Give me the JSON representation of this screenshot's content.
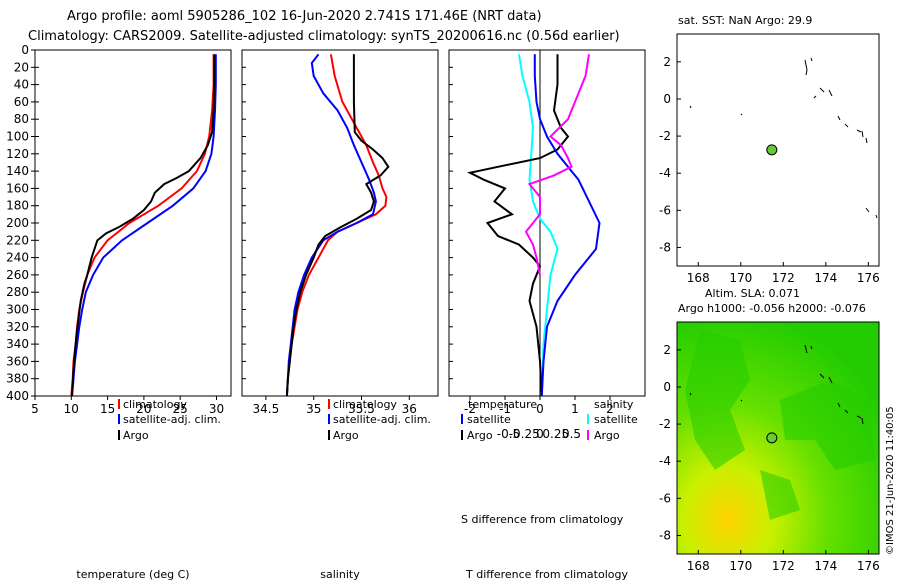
{
  "title": {
    "line1": "Argo profile: aoml 5905286_102 16-Jun-2020 2.741S 171.46E (NRT data)",
    "line2": "Climatology: CARS2009. Satellite-adjusted climatology: synTS_20200616.nc (0.56d earlier)"
  },
  "colors": {
    "clim": "#ff0000",
    "sat": "#0000ff",
    "argo": "#000000",
    "temp_diff": "#0000ff",
    "sal_diff": "#ff00ff",
    "sat_t": "#00ffff",
    "marker": "#66cc33"
  },
  "depth_axis": {
    "ticks": [
      "0",
      "20",
      "40",
      "60",
      "80",
      "100",
      "120",
      "140",
      "160",
      "180",
      "200",
      "220",
      "240",
      "260",
      "280",
      "300",
      "320",
      "340",
      "360",
      "380",
      "400"
    ]
  },
  "chart_data": [
    {
      "type": "line",
      "id": "temperature",
      "xlabel": "temperature (deg C)",
      "xlim": [
        5,
        32
      ],
      "ylim": [
        0,
        400
      ],
      "ylabel": "depth",
      "xticks": [
        "5",
        "10",
        "15",
        "20",
        "25",
        "30"
      ],
      "legend": {
        "clim": "climatology",
        "sat": "satellite-adj. clim.",
        "argo": "Argo"
      },
      "series": [
        {
          "name": "climatology",
          "color": "#ff0000",
          "points": [
            [
              29.6,
              5
            ],
            [
              29.6,
              40
            ],
            [
              29.4,
              70
            ],
            [
              29.0,
              100
            ],
            [
              28.4,
              120
            ],
            [
              27.3,
              140
            ],
            [
              25.2,
              160
            ],
            [
              22.0,
              180
            ],
            [
              18.0,
              200
            ],
            [
              15.0,
              220
            ],
            [
              13.2,
              240
            ],
            [
              12.2,
              260
            ],
            [
              11.6,
              280
            ],
            [
              11.1,
              300
            ],
            [
              10.8,
              320
            ],
            [
              10.6,
              340
            ],
            [
              10.3,
              360
            ],
            [
              10.2,
              380
            ],
            [
              10.0,
              400
            ]
          ]
        },
        {
          "name": "satellite-adj. clim.",
          "color": "#0000ff",
          "points": [
            [
              29.9,
              5
            ],
            [
              29.9,
              40
            ],
            [
              29.8,
              70
            ],
            [
              29.6,
              100
            ],
            [
              29.3,
              120
            ],
            [
              28.5,
              140
            ],
            [
              26.8,
              160
            ],
            [
              24.0,
              180
            ],
            [
              20.5,
              200
            ],
            [
              17.0,
              220
            ],
            [
              14.4,
              240
            ],
            [
              13.0,
              260
            ],
            [
              12.0,
              280
            ],
            [
              11.5,
              300
            ],
            [
              11.1,
              320
            ],
            [
              10.8,
              340
            ],
            [
              10.5,
              360
            ],
            [
              10.3,
              380
            ],
            [
              10.1,
              400
            ]
          ]
        },
        {
          "name": "Argo",
          "color": "#000000",
          "points": [
            [
              29.7,
              5
            ],
            [
              29.7,
              40
            ],
            [
              29.6,
              70
            ],
            [
              29.4,
              95
            ],
            [
              28.8,
              110
            ],
            [
              27.8,
              125
            ],
            [
              26.2,
              140
            ],
            [
              24.5,
              148
            ],
            [
              22.8,
              155
            ],
            [
              21.5,
              165
            ],
            [
              21.0,
              175
            ],
            [
              20.0,
              185
            ],
            [
              18.5,
              195
            ],
            [
              16.5,
              205
            ],
            [
              14.8,
              212
            ],
            [
              13.6,
              220
            ],
            [
              12.8,
              240
            ],
            [
              12.2,
              260
            ],
            [
              11.8,
              270
            ],
            [
              11.3,
              290
            ],
            [
              11.0,
              310
            ],
            [
              10.7,
              330
            ],
            [
              10.5,
              350
            ],
            [
              10.3,
              370
            ],
            [
              10.1,
              400
            ]
          ]
        }
      ]
    },
    {
      "type": "line",
      "id": "salinity",
      "xlabel": "salinity",
      "xlim": [
        34.25,
        36.3
      ],
      "ylim": [
        0,
        400
      ],
      "xticks": [
        "34.5",
        "35",
        "35.5",
        "36"
      ],
      "legend": {
        "clim": "climatology",
        "sat": "satellite-adj. clim.",
        "argo": "Argo"
      },
      "series": [
        {
          "name": "climatology",
          "color": "#ff0000",
          "points": [
            [
              35.18,
              5
            ],
            [
              35.22,
              30
            ],
            [
              35.3,
              60
            ],
            [
              35.45,
              90
            ],
            [
              35.55,
              110
            ],
            [
              35.62,
              130
            ],
            [
              35.68,
              145
            ],
            [
              35.72,
              160
            ],
            [
              35.76,
              170
            ],
            [
              35.75,
              180
            ],
            [
              35.65,
              190
            ],
            [
              35.45,
              200
            ],
            [
              35.25,
              210
            ],
            [
              35.15,
              220
            ],
            [
              35.05,
              240
            ],
            [
              34.95,
              260
            ],
            [
              34.88,
              280
            ],
            [
              34.83,
              300
            ],
            [
              34.8,
              320
            ],
            [
              34.77,
              340
            ],
            [
              34.75,
              360
            ],
            [
              34.73,
              380
            ],
            [
              34.72,
              400
            ]
          ]
        },
        {
          "name": "satellite-adj. clim.",
          "color": "#0000ff",
          "points": [
            [
              35.05,
              5
            ],
            [
              34.98,
              15
            ],
            [
              35.0,
              30
            ],
            [
              35.1,
              50
            ],
            [
              35.25,
              70
            ],
            [
              35.35,
              90
            ],
            [
              35.42,
              110
            ],
            [
              35.5,
              130
            ],
            [
              35.58,
              150
            ],
            [
              35.63,
              165
            ],
            [
              35.65,
              175
            ],
            [
              35.62,
              190
            ],
            [
              35.45,
              200
            ],
            [
              35.25,
              210
            ],
            [
              35.1,
              220
            ],
            [
              34.98,
              240
            ],
            [
              34.9,
              260
            ],
            [
              34.84,
              280
            ],
            [
              34.8,
              300
            ],
            [
              34.78,
              320
            ],
            [
              34.76,
              340
            ],
            [
              34.74,
              360
            ],
            [
              34.73,
              380
            ],
            [
              34.72,
              400
            ]
          ]
        },
        {
          "name": "Argo",
          "color": "#000000",
          "points": [
            [
              35.42,
              5
            ],
            [
              35.42,
              60
            ],
            [
              35.43,
              95
            ],
            [
              35.5,
              105
            ],
            [
              35.62,
              115
            ],
            [
              35.72,
              125
            ],
            [
              35.78,
              135
            ],
            [
              35.7,
              145
            ],
            [
              35.55,
              155
            ],
            [
              35.6,
              165
            ],
            [
              35.63,
              175
            ],
            [
              35.6,
              185
            ],
            [
              35.45,
              195
            ],
            [
              35.28,
              205
            ],
            [
              35.12,
              215
            ],
            [
              35.05,
              225
            ],
            [
              35.0,
              240
            ],
            [
              34.92,
              260
            ],
            [
              34.86,
              280
            ],
            [
              34.82,
              300
            ],
            [
              34.79,
              320
            ],
            [
              34.77,
              340
            ],
            [
              34.75,
              360
            ],
            [
              34.73,
              380
            ],
            [
              34.72,
              400
            ]
          ]
        }
      ]
    },
    {
      "type": "line",
      "id": "differences",
      "xlabel": "T difference from climatology",
      "xlabel_top": "S difference from climatology",
      "xlim": [
        -2.6,
        3.0
      ],
      "ylim": [
        0,
        400
      ],
      "xticks": [
        "-2",
        "-1",
        "0",
        "1",
        "2"
      ],
      "s_ticks": [
        "-0.5",
        "-0.25",
        "0",
        "0.25",
        "0.5"
      ],
      "legend": {
        "temperature": "temperature",
        "salinity": "salinity",
        "sat_t": "satellite",
        "argo_t": "Argo",
        "sat_s": "satellite",
        "argo_s": "Argo"
      },
      "series": [
        {
          "name": "T satellite",
          "color": "#00ffff",
          "points": [
            [
              -0.6,
              5
            ],
            [
              -0.5,
              30
            ],
            [
              -0.3,
              60
            ],
            [
              -0.2,
              90
            ],
            [
              -0.25,
              120
            ],
            [
              -0.3,
              150
            ],
            [
              -0.2,
              175
            ],
            [
              0.0,
              195
            ],
            [
              0.3,
              210
            ],
            [
              0.5,
              230
            ],
            [
              0.3,
              260
            ],
            [
              0.2,
              300
            ],
            [
              0.1,
              340
            ],
            [
              0.05,
              400
            ]
          ]
        },
        {
          "name": "T Argo",
          "color": "#000000",
          "points": [
            [
              0.5,
              5
            ],
            [
              0.5,
              40
            ],
            [
              0.4,
              70
            ],
            [
              0.6,
              90
            ],
            [
              0.8,
              100
            ],
            [
              0.5,
              115
            ],
            [
              0.0,
              125
            ],
            [
              -1.2,
              135
            ],
            [
              -2.0,
              142
            ],
            [
              -1.6,
              150
            ],
            [
              -1.0,
              160
            ],
            [
              -1.3,
              175
            ],
            [
              -0.8,
              190
            ],
            [
              -1.5,
              200
            ],
            [
              -1.2,
              215
            ],
            [
              -0.6,
              225
            ],
            [
              -0.2,
              240
            ],
            [
              0.0,
              250
            ],
            [
              -0.2,
              270
            ],
            [
              -0.3,
              290
            ],
            [
              -0.1,
              320
            ],
            [
              0.0,
              360
            ],
            [
              0.05,
              400
            ]
          ]
        },
        {
          "name": "S satellite",
          "color": "#0000ff",
          "points": [
            [
              -0.15,
              5
            ],
            [
              -0.15,
              30
            ],
            [
              -0.1,
              60
            ],
            [
              0.0,
              80
            ],
            [
              0.2,
              100
            ],
            [
              0.5,
              120
            ],
            [
              1.1,
              150
            ],
            [
              1.7,
              200
            ],
            [
              1.6,
              230
            ],
            [
              1.0,
              260
            ],
            [
              0.5,
              290
            ],
            [
              0.2,
              320
            ],
            [
              0.1,
              360
            ],
            [
              0.05,
              400
            ]
          ]
        },
        {
          "name": "S Argo",
          "color": "#ff00ff",
          "points": [
            [
              1.4,
              5
            ],
            [
              1.3,
              30
            ],
            [
              1.0,
              60
            ],
            [
              0.8,
              80
            ],
            [
              0.3,
              100
            ],
            [
              0.6,
              110
            ],
            [
              0.8,
              125
            ],
            [
              0.9,
              135
            ],
            [
              0.4,
              145
            ],
            [
              -0.3,
              155
            ],
            [
              0.0,
              170
            ],
            [
              0.0,
              190
            ],
            [
              -0.4,
              210
            ],
            [
              -0.2,
              225
            ],
            [
              -0.1,
              240
            ],
            [
              0.0,
              260
            ]
          ]
        }
      ]
    },
    {
      "type": "scatter",
      "id": "sst_map",
      "title": "sat. SST: NaN Argo: 29.9",
      "xlim": [
        167,
        176.5
      ],
      "ylim": [
        -9,
        3.5
      ],
      "xticks": [
        "168",
        "170",
        "172",
        "174",
        "176"
      ],
      "yticks": [
        "2",
        "0",
        "-2",
        "-4",
        "-6",
        "-8"
      ],
      "marker": [
        171.46,
        -2.741
      ]
    },
    {
      "type": "heatmap",
      "id": "sla_map",
      "title_line1": "Altim. SLA: 0.071",
      "title_line2": "Argo h1000: -0.056 h2000: -0.076",
      "xlim": [
        167,
        176.5
      ],
      "ylim": [
        -9,
        3.5
      ],
      "xticks": [
        "168",
        "170",
        "172",
        "174",
        "176"
      ],
      "yticks": [
        "2",
        "0",
        "-2",
        "-4",
        "-6",
        "-8"
      ],
      "marker": [
        171.46,
        -2.741
      ]
    }
  ],
  "watermark": "©IMOS 21-Jun-2020 11:40:05"
}
